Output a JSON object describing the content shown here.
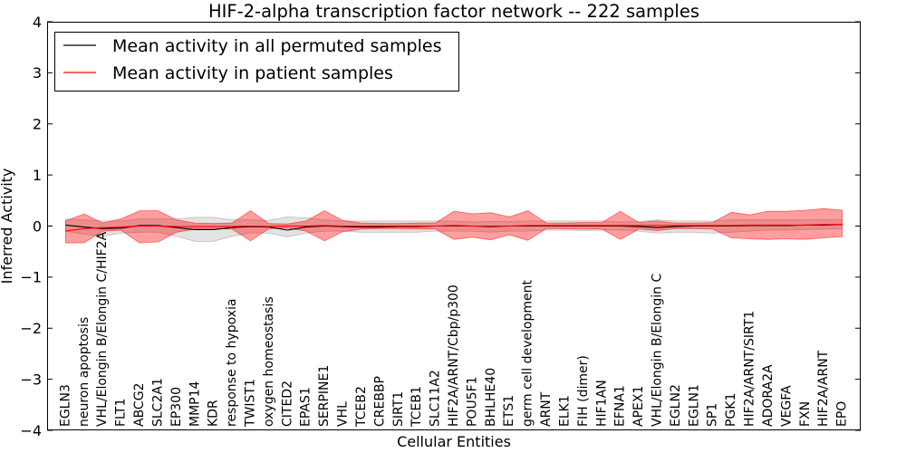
{
  "chart_data": {
    "type": "line",
    "title": "HIF-2-alpha transcription factor network -- 222 samples",
    "xlabel": "Cellular Entities",
    "ylabel": "Inferred Activity",
    "xlim": [
      -1,
      43
    ],
    "ylim": [
      -4,
      4
    ],
    "yticks": [
      -4,
      -3,
      -2,
      -1,
      0,
      1,
      2,
      3,
      4
    ],
    "ytick_labels": [
      "−4",
      "−3",
      "−2",
      "−1",
      "0",
      "1",
      "2",
      "3",
      "4"
    ],
    "grid": false,
    "categories": [
      "EGLN3",
      "neuron apoptosis",
      "VHL/Elongin B/Elongin C/HIF2A",
      "FLT1",
      "ABCG2",
      "SLC2A1",
      "EP300",
      "MMP14",
      "KDR",
      "response to hypoxia",
      "TWIST1",
      "oxygen homeostasis",
      "CITED2",
      "EPAS1",
      "SERPINE1",
      "VHL",
      "TCEB2",
      "CREBBP",
      "SIRT1",
      "TCEB1",
      "SLC11A2",
      "HIF2A/ARNT/Cbp/p300",
      "POU5F1",
      "BHLHE40",
      "ETS1",
      "germ cell development",
      "ARNT",
      "ELK1",
      "FIH (dimer)",
      "HIF1AN",
      "EFNA1",
      "APEX1",
      "VHL/Elongin B/Elongin C",
      "EGLN2",
      "EGLN1",
      "SP1",
      "PGK1",
      "HIF2A/ARNT/SIRT1",
      "ADORA2A",
      "VEGFA",
      "FXN",
      "HIF2A/ARNT",
      "EPO"
    ],
    "series": [
      {
        "name": "Mean activity in all permuted samples",
        "color": "#000000",
        "band_color": "#808080",
        "values": [
          0.02,
          -0.02,
          -0.05,
          -0.04,
          0.01,
          0.01,
          -0.03,
          -0.07,
          -0.07,
          -0.03,
          -0.01,
          -0.02,
          -0.08,
          -0.02,
          0,
          -0.01,
          -0.02,
          -0.02,
          -0.01,
          -0.01,
          0,
          0,
          0,
          -0.01,
          0,
          0,
          0,
          0,
          0,
          0,
          0,
          -0.01,
          -0.03,
          -0.01,
          0,
          0,
          0,
          0.01,
          0.01,
          0.01,
          0.02,
          0.02,
          0.03
        ],
        "band_lower": [
          -0.1,
          -0.16,
          -0.2,
          -0.14,
          -0.12,
          -0.12,
          -0.2,
          -0.3,
          -0.3,
          -0.2,
          -0.13,
          -0.14,
          -0.21,
          -0.14,
          -0.1,
          -0.1,
          -0.12,
          -0.12,
          -0.12,
          -0.12,
          -0.1,
          -0.1,
          -0.1,
          -0.12,
          -0.1,
          -0.1,
          -0.08,
          -0.08,
          -0.09,
          -0.08,
          -0.08,
          -0.1,
          -0.14,
          -0.12,
          -0.12,
          -0.14,
          -0.12,
          -0.1,
          -0.08,
          -0.08,
          -0.07,
          -0.06,
          -0.05
        ],
        "band_upper": [
          0.14,
          0.12,
          0.1,
          0.1,
          0.14,
          0.14,
          0.14,
          0.17,
          0.17,
          0.12,
          0.12,
          0.11,
          0.18,
          0.16,
          0.12,
          0.1,
          0.1,
          0.1,
          0.1,
          0.1,
          0.1,
          0.1,
          0.08,
          0.09,
          0.09,
          0.1,
          0.1,
          0.1,
          0.1,
          0.1,
          0.08,
          0.09,
          0.12,
          0.1,
          0.1,
          0.1,
          0.12,
          0.12,
          0.12,
          0.12,
          0.12,
          0.12,
          0.12
        ]
      },
      {
        "name": "Mean activity in patient samples",
        "color": "#ff0000",
        "band_color": "#ff0000",
        "values": [
          -0.1,
          -0.05,
          -0.03,
          -0.02,
          0,
          0,
          -0.01,
          -0.01,
          -0.01,
          -0.01,
          0,
          -0.01,
          0,
          0,
          0.01,
          0,
          0,
          0,
          0,
          0,
          0,
          0.01,
          0,
          0,
          0,
          0.01,
          0.01,
          0.01,
          0.01,
          0.01,
          0.01,
          0.01,
          0.01,
          0.01,
          0.01,
          0.01,
          0.01,
          0.02,
          0.02,
          0.02,
          0.02,
          0.03,
          0.03
        ],
        "band_lower": [
          -0.33,
          -0.33,
          -0.1,
          -0.08,
          -0.33,
          -0.31,
          -0.12,
          -0.06,
          -0.05,
          -0.06,
          -0.29,
          -0.05,
          -0.04,
          -0.1,
          -0.29,
          -0.11,
          -0.06,
          -0.05,
          -0.05,
          -0.06,
          -0.06,
          -0.26,
          -0.22,
          -0.27,
          -0.17,
          -0.28,
          -0.05,
          -0.05,
          -0.06,
          -0.06,
          -0.26,
          -0.06,
          -0.09,
          -0.05,
          -0.05,
          -0.06,
          -0.23,
          -0.25,
          -0.26,
          -0.25,
          -0.26,
          -0.23,
          -0.21
        ],
        "band_upper": [
          0.1,
          0.24,
          0.06,
          0.14,
          0.3,
          0.3,
          0.12,
          0.06,
          0.05,
          0.06,
          0.3,
          0.05,
          0.04,
          0.1,
          0.3,
          0.11,
          0.06,
          0.05,
          0.05,
          0.06,
          0.06,
          0.29,
          0.24,
          0.26,
          0.18,
          0.3,
          0.06,
          0.06,
          0.07,
          0.07,
          0.29,
          0.07,
          0.1,
          0.06,
          0.06,
          0.07,
          0.27,
          0.22,
          0.29,
          0.29,
          0.31,
          0.34,
          0.31
        ]
      }
    ]
  }
}
